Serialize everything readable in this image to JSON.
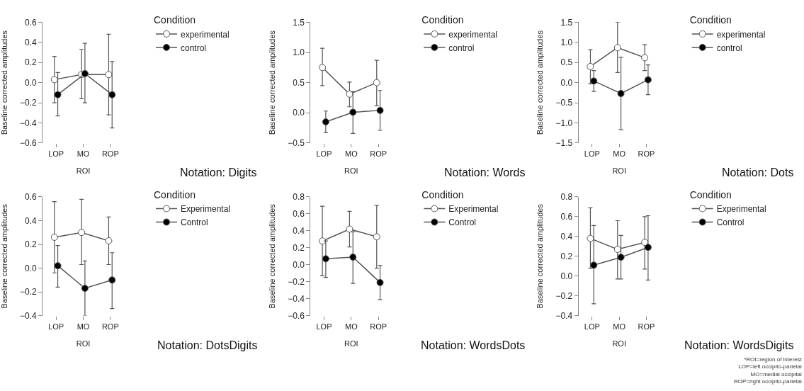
{
  "chart_data": [
    {
      "type": "line",
      "annotations": [
        "Notation: Digits"
      ],
      "xlabel": "ROI",
      "ylabel": "Baseline corrected amplitudes",
      "legend_title": "Condition",
      "legend": "top right",
      "marker": "circle",
      "line_style": "solid",
      "categories": [
        "LOP",
        "MO",
        "ROP"
      ],
      "ylim": [
        -0.6,
        0.6
      ],
      "yticks": [
        {
          "value": -0.6,
          "label": "−0.6"
        },
        {
          "value": -0.4,
          "label": "−0.4"
        },
        {
          "value": -0.2,
          "label": "−0.2"
        },
        {
          "value": 0,
          "label": "0.0"
        },
        0.2,
        0.4,
        0.6
      ],
      "series": [
        {
          "name": "experimental",
          "color": "#ffffff",
          "values": [
            0.03,
            0.08,
            0.08
          ],
          "errors": [
            [
              -0.2,
              0.26
            ],
            [
              -0.16,
              0.33
            ],
            [
              -0.32,
              0.48
            ]
          ]
        },
        {
          "name": "control",
          "color": "#000000",
          "values": [
            -0.12,
            0.09,
            -0.12
          ],
          "errors": [
            [
              -0.33,
              0.1
            ],
            [
              -0.2,
              0.39
            ],
            [
              -0.45,
              0.21
            ]
          ]
        }
      ]
    },
    {
      "type": "line",
      "annotations": [
        "Notation: Words"
      ],
      "xlabel": "ROI",
      "ylabel": "Baseline corrected amplitudes",
      "legend_title": "Condition",
      "legend": "top right",
      "marker": "circle",
      "line_style": "solid",
      "categories": [
        "LOP",
        "MO",
        "ROP"
      ],
      "ylim": [
        -0.5,
        1.5
      ],
      "yticks": [
        {
          "value": -0.5,
          "label": "−0.5"
        },
        {
          "value": 0,
          "label": "0.0"
        },
        0.5,
        {
          "value": 1,
          "label": "1.0"
        },
        1.5
      ],
      "series": [
        {
          "name": "experimental",
          "color": "#ffffff",
          "values": [
            0.75,
            0.31,
            0.5
          ],
          "errors": [
            [
              0.45,
              1.07
            ],
            [
              0.1,
              0.51
            ],
            [
              0.12,
              0.87
            ]
          ]
        },
        {
          "name": "control",
          "color": "#000000",
          "values": [
            -0.15,
            0.01,
            0.04
          ],
          "errors": [
            [
              -0.33,
              0.03
            ],
            [
              -0.34,
              0.35
            ],
            [
              -0.29,
              0.37
            ]
          ]
        }
      ]
    },
    {
      "type": "line",
      "annotations": [
        "Notation: Dots"
      ],
      "xlabel": "ROI",
      "ylabel": "Baseline corrected amplitudes",
      "legend_title": "Condition",
      "legend": "top right",
      "marker": "circle",
      "line_style": "solid",
      "categories": [
        "LOP",
        "MO",
        "ROP"
      ],
      "ylim": [
        -1.5,
        1.5
      ],
      "yticks": [
        {
          "value": -1.5,
          "label": "−1.5"
        },
        {
          "value": -1,
          "label": "−1.0"
        },
        {
          "value": -0.5,
          "label": "−0.5"
        },
        {
          "value": 0,
          "label": "0.0"
        },
        0.5,
        {
          "value": 1,
          "label": "1.0"
        },
        1.5
      ],
      "series": [
        {
          "name": "experimental",
          "color": "#ffffff",
          "values": [
            0.4,
            0.87,
            0.62
          ],
          "errors": [
            [
              -0.03,
              0.82
            ],
            [
              0.25,
              1.5
            ],
            [
              0.3,
              0.94
            ]
          ]
        },
        {
          "name": "control",
          "color": "#000000",
          "values": [
            0.04,
            -0.27,
            0.07
          ],
          "errors": [
            [
              -0.22,
              0.3
            ],
            [
              -1.17,
              0.63
            ],
            [
              -0.3,
              0.44
            ]
          ]
        }
      ]
    },
    {
      "type": "line",
      "annotations": [
        "Notation: DotsDigits"
      ],
      "xlabel": "ROI",
      "ylabel": "Baseline corrected amplitudes",
      "legend_title": "Condition",
      "legend": "top right",
      "marker": "circle",
      "line_style": "solid",
      "categories": [
        "LOP",
        "MO",
        "ROP"
      ],
      "ylim": [
        -0.4,
        0.6
      ],
      "yticks": [
        {
          "value": -0.4,
          "label": "−0.4"
        },
        {
          "value": -0.2,
          "label": "−0.2"
        },
        {
          "value": 0,
          "label": "0.0"
        },
        0.2,
        0.4,
        0.6
      ],
      "series": [
        {
          "name": "Experimental",
          "color": "#ffffff",
          "values": [
            0.26,
            0.3,
            0.23
          ],
          "errors": [
            [
              -0.04,
              0.56
            ],
            [
              0.03,
              0.58
            ],
            [
              0.03,
              0.43
            ]
          ]
        },
        {
          "name": "Control",
          "color": "#000000",
          "values": [
            0.02,
            -0.17,
            -0.1
          ],
          "errors": [
            [
              -0.16,
              0.19
            ],
            [
              -0.4,
              0.06
            ],
            [
              -0.34,
              0.13
            ]
          ]
        }
      ]
    },
    {
      "type": "line",
      "annotations": [
        "Notation: WordsDots"
      ],
      "xlabel": "ROI",
      "ylabel": "Baseline corrected amplitudes",
      "legend_title": "Condition",
      "legend": "top right",
      "marker": "circle",
      "line_style": "solid",
      "categories": [
        "LOP",
        "MO",
        "ROP"
      ],
      "ylim": [
        -0.6,
        0.8
      ],
      "yticks": [
        {
          "value": -0.6,
          "label": "−0.6"
        },
        {
          "value": -0.4,
          "label": "−0.4"
        },
        {
          "value": -0.2,
          "label": "−0.2"
        },
        {
          "value": 0,
          "label": "0.0"
        },
        0.2,
        0.4,
        0.6,
        0.8
      ],
      "series": [
        {
          "name": "Experimental",
          "color": "#ffffff",
          "values": [
            0.28,
            0.42,
            0.33
          ],
          "errors": [
            [
              -0.13,
              0.69
            ],
            [
              0.21,
              0.63
            ],
            [
              -0.04,
              0.7
            ]
          ]
        },
        {
          "name": "Control",
          "color": "#000000",
          "values": [
            0.07,
            0.09,
            -0.21
          ],
          "errors": [
            [
              -0.15,
              0.28
            ],
            [
              -0.22,
              0.39
            ],
            [
              -0.41,
              -0.01
            ]
          ]
        }
      ]
    },
    {
      "type": "line",
      "xlabel": "ROI",
      "ylabel": "Baseline corrected amplitudes",
      "legend_title": "Condition",
      "legend": "top right",
      "marker": "circle",
      "line_style": "solid",
      "categories": [
        "LOP",
        "MO",
        "ROP"
      ],
      "ylim": [
        -0.4,
        0.8
      ],
      "yticks": [
        {
          "value": -0.4,
          "label": "−0.4"
        },
        {
          "value": -0.2,
          "label": "−0.2"
        },
        {
          "value": 0,
          "label": "0.0"
        },
        0.2,
        0.4,
        0.6,
        0.8
      ],
      "series": [
        {
          "name": "Experimental",
          "color": "#ffffff",
          "values": [
            0.38,
            0.27,
            0.34
          ],
          "errors": [
            [
              0.08,
              0.69
            ],
            [
              -0.03,
              0.56
            ],
            [
              0.07,
              0.6
            ]
          ]
        },
        {
          "name": "Control",
          "color": "#000000",
          "values": [
            0.11,
            0.19,
            0.29
          ],
          "errors": [
            [
              -0.28,
              0.51
            ],
            [
              -0.03,
              0.41
            ],
            [
              -0.04,
              0.61
            ]
          ]
        }
      ],
      "annotations": [
        "Notation: WordsDigits",
        "*ROI=region of interest\nLOP=left occipito-parietal\nMO=medial occipital\nROP=right occipito-parietal"
      ]
    }
  ]
}
